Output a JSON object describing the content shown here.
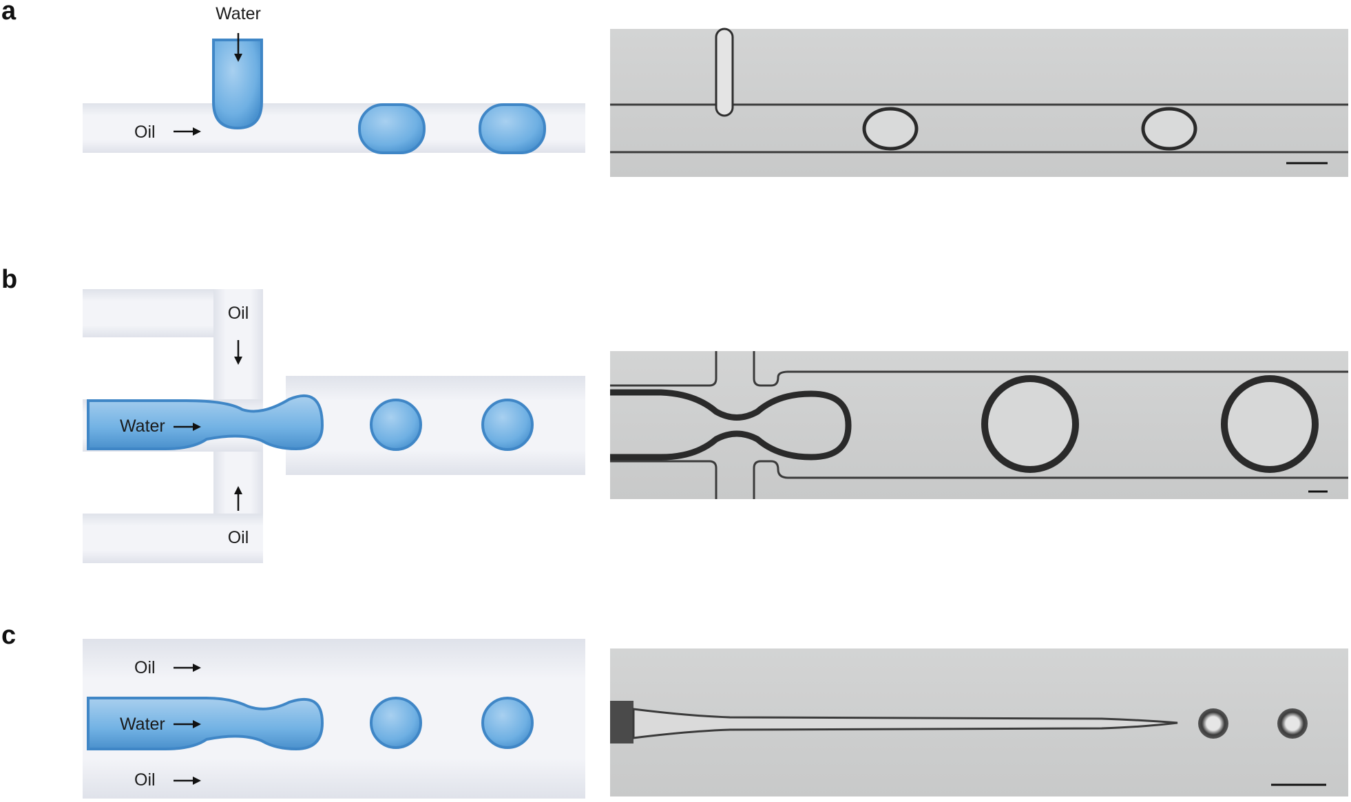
{
  "panels": [
    {
      "letter": "a",
      "labels": {
        "water": "Water",
        "oil": "Oil"
      }
    },
    {
      "letter": "b",
      "labels": {
        "oil_top": "Oil",
        "water": "Water",
        "oil_bottom": "Oil"
      }
    },
    {
      "letter": "c",
      "labels": {
        "oil_top": "Oil",
        "water": "Water",
        "oil_bottom": "Oil"
      }
    }
  ],
  "colors": {
    "water_fill": "#6fb0e3",
    "water_edge": "#3f86c6",
    "channel_shade": "#e9ebf2",
    "micrograph_bg": "#cfd0d0",
    "micrograph_line": "#3a3a3a"
  }
}
